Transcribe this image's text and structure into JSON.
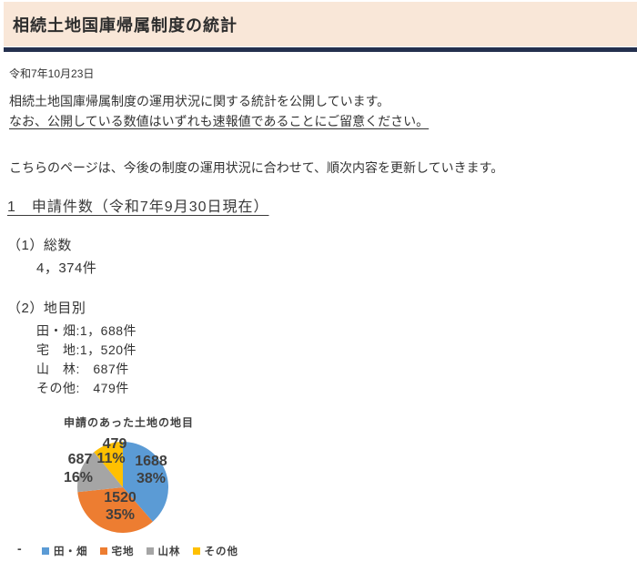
{
  "header": {
    "title": "相続土地国庫帰属制度の統計"
  },
  "date": "令和7年10月23日",
  "intro": {
    "line1": "相続土地国庫帰属制度の運用状況に関する統計を公開しています。",
    "line2": "なお、公開している数値はいずれも速報値であることにご留意ください。"
  },
  "note": "こちらのページは、今後の制度の運用状況に合わせて、順次内容を更新していきます。",
  "section1": {
    "heading": "1　申請件数（令和7年9月30日現在）",
    "total": {
      "label": "（1）総数",
      "value": "4，374件"
    },
    "by_type": {
      "label": "（2）地目別",
      "items": [
        "田・畑:1，688件",
        "宅　地:1，520件",
        "山　林:　687件",
        "その他:　479件"
      ]
    }
  },
  "chart_data": {
    "type": "pie",
    "title": "申請のあった土地の地目",
    "categories": [
      "田・畑",
      "宅地",
      "山林",
      "その他"
    ],
    "values": [
      1688,
      1520,
      687,
      479
    ],
    "percent_labels": [
      "38%",
      "35%",
      "16%",
      "11%"
    ],
    "colors": [
      "#5B9BD5",
      "#ED7D31",
      "#A5A5A5",
      "#FFC000"
    ],
    "total": 4374,
    "start_angle": "top",
    "direction": "clockwise",
    "legend_position": "bottom"
  },
  "misc": {
    "stray_dash": "-"
  },
  "theme": {
    "header_bg": "#F9E7D8",
    "header_rule": "#24304E",
    "text": "#333333",
    "chart_label": "#3F3F3F"
  }
}
